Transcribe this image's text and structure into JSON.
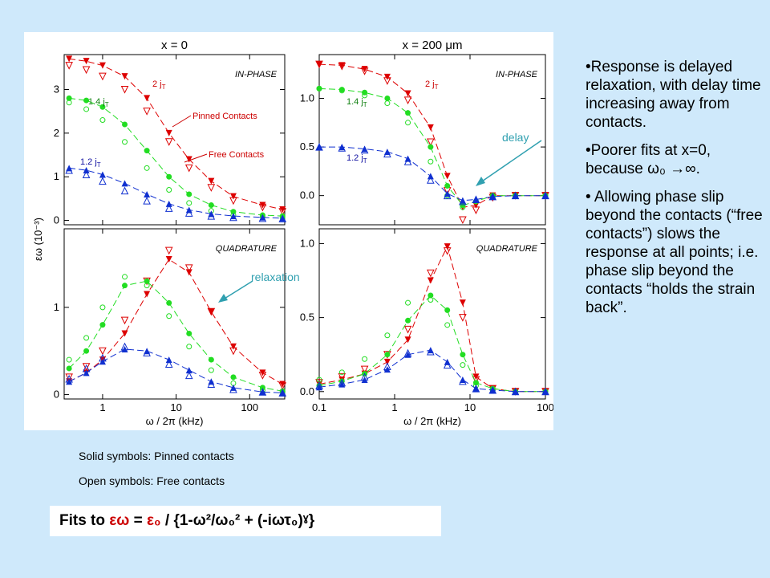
{
  "bullets": [
    "•Response is delayed relaxation, with delay time increasing away from contacts.",
    "•Poorer fits at x=0, because ω₀ →∞.",
    "• Allowing phase slip beyond the contacts (“free contacts”) slows the response at  all points; i.e. phase slip beyond the contacts “holds the strain back”."
  ],
  "notes": {
    "solid": "Solid symbols: Pinned contacts",
    "open": "Open symbols: Free contacts"
  },
  "fit": {
    "prefix": "Fits to ",
    "eps_w": "εω",
    "eq": " = ",
    "eps_0": "ε₀",
    "rest": " / {1-ω²/ω₀² + (-iωτ₀)ˠ}"
  },
  "annotations": {
    "delay": "delay",
    "relaxation": "relaxation",
    "pinned": "Pinned Contacts",
    "free": "Free Contacts",
    "in_phase": "IN-PHASE",
    "quadrature": "QUADRATURE",
    "j2": "2 j",
    "j14": "1.4 j",
    "j12": "1.2 j",
    "j_sub": "T"
  },
  "colors": {
    "red": "#dd0000",
    "green": "#22dd22",
    "blue": "#1030d0",
    "arrow": "#30a0b0"
  },
  "chart_data": [
    {
      "type": "scatter",
      "title": "x = 0",
      "panel": "IN-PHASE",
      "xscale": "log",
      "xlim": [
        0.3,
        300
      ],
      "ylim": [
        -0.1,
        3.8
      ],
      "xticks": [
        1,
        10,
        100
      ],
      "yticks": [
        0,
        1,
        2,
        3
      ],
      "ylabel": "εω   (10⁻³)",
      "series": [
        {
          "name": "2 jT",
          "color": "#dd0000",
          "x": [
            0.35,
            0.6,
            1,
            2,
            4,
            8,
            15,
            30,
            60,
            150,
            280
          ],
          "pinned": [
            3.7,
            3.65,
            3.55,
            3.3,
            2.8,
            2.0,
            1.4,
            0.9,
            0.55,
            0.35,
            0.25
          ],
          "free": [
            3.55,
            3.45,
            3.3,
            3.0,
            2.5,
            1.8,
            1.2,
            0.75,
            0.45,
            0.3,
            0.2
          ]
        },
        {
          "name": "1.4 jT",
          "color": "#22dd22",
          "x": [
            0.35,
            0.6,
            1,
            2,
            4,
            8,
            15,
            30,
            60,
            150,
            280
          ],
          "pinned": [
            2.8,
            2.75,
            2.6,
            2.2,
            1.6,
            1.0,
            0.6,
            0.35,
            0.2,
            0.12,
            0.1
          ],
          "free": [
            2.7,
            2.55,
            2.3,
            1.8,
            1.2,
            0.7,
            0.4,
            0.22,
            0.12,
            0.08,
            0.06
          ]
        },
        {
          "name": "1.2 jT",
          "color": "#1030d0",
          "x": [
            0.35,
            0.6,
            1,
            2,
            4,
            8,
            15,
            30,
            60,
            150,
            280
          ],
          "pinned": [
            1.2,
            1.15,
            1.05,
            0.85,
            0.6,
            0.38,
            0.24,
            0.15,
            0.1,
            0.07,
            0.05
          ],
          "free": [
            1.15,
            1.05,
            0.9,
            0.68,
            0.45,
            0.28,
            0.17,
            0.1,
            0.07,
            0.05,
            0.04
          ]
        }
      ]
    },
    {
      "type": "scatter",
      "title": "x = 200 μm",
      "panel": "IN-PHASE",
      "xscale": "log",
      "xlim": [
        0.1,
        100
      ],
      "ylim": [
        -0.3,
        1.45
      ],
      "xticks": [
        0.1,
        1,
        10,
        100
      ],
      "yticks": [
        0.0,
        0.5,
        1.0
      ],
      "series": [
        {
          "name": "2 jT",
          "color": "#dd0000",
          "x": [
            0.1,
            0.2,
            0.4,
            0.8,
            1.5,
            3,
            5,
            8,
            12,
            20,
            40,
            100
          ],
          "pinned": [
            1.35,
            1.34,
            1.3,
            1.22,
            1.05,
            0.7,
            0.2,
            -0.12,
            -0.1,
            0.0,
            0.0,
            0.0
          ],
          "free": [
            1.35,
            1.33,
            1.28,
            1.18,
            0.98,
            0.55,
            0.05,
            -0.25,
            -0.15,
            -0.02,
            0.0,
            0.0
          ]
        },
        {
          "name": "1.4 jT",
          "color": "#22dd22",
          "x": [
            0.1,
            0.2,
            0.4,
            0.8,
            1.5,
            3,
            5,
            8,
            12,
            20,
            40,
            100
          ],
          "pinned": [
            1.1,
            1.09,
            1.06,
            1.0,
            0.85,
            0.5,
            0.1,
            -0.1,
            -0.06,
            0.0,
            0.0,
            0.0
          ],
          "free": [
            1.1,
            1.08,
            1.03,
            0.95,
            0.75,
            0.35,
            0.0,
            -0.12,
            -0.06,
            -0.01,
            0.0,
            0.0
          ]
        },
        {
          "name": "1.2 jT",
          "color": "#1030d0",
          "x": [
            0.1,
            0.2,
            0.4,
            0.8,
            1.5,
            3,
            5,
            8,
            12,
            20,
            40,
            100
          ],
          "pinned": [
            0.5,
            0.5,
            0.48,
            0.45,
            0.38,
            0.2,
            0.02,
            -0.05,
            -0.04,
            -0.01,
            0.0,
            0.0
          ],
          "free": [
            0.5,
            0.49,
            0.47,
            0.43,
            0.35,
            0.16,
            0.0,
            -0.06,
            -0.04,
            -0.01,
            0.0,
            0.0
          ]
        }
      ]
    },
    {
      "type": "scatter",
      "panel": "QUADRATURE",
      "xscale": "log",
      "xlim": [
        0.3,
        300
      ],
      "ylim": [
        -0.05,
        1.9
      ],
      "xticks": [
        1,
        10,
        100
      ],
      "yticks": [
        0,
        1
      ],
      "xlabel": "ω / 2π   (kHz)",
      "series": [
        {
          "name": "2 jT",
          "color": "#dd0000",
          "x": [
            0.35,
            0.6,
            1,
            2,
            4,
            8,
            15,
            30,
            60,
            150,
            280
          ],
          "pinned": [
            0.15,
            0.25,
            0.4,
            0.7,
            1.15,
            1.55,
            1.4,
            0.95,
            0.55,
            0.25,
            0.12
          ],
          "free": [
            0.2,
            0.32,
            0.5,
            0.85,
            1.3,
            1.65,
            1.45,
            0.95,
            0.5,
            0.22,
            0.1
          ]
        },
        {
          "name": "1.4 jT",
          "color": "#22dd22",
          "x": [
            0.35,
            0.6,
            1,
            2,
            4,
            8,
            15,
            30,
            60,
            150,
            280
          ],
          "pinned": [
            0.3,
            0.5,
            0.8,
            1.25,
            1.3,
            1.05,
            0.7,
            0.4,
            0.2,
            0.08,
            0.04
          ],
          "free": [
            0.4,
            0.65,
            1.0,
            1.35,
            1.25,
            0.9,
            0.55,
            0.28,
            0.13,
            0.05,
            0.03
          ]
        },
        {
          "name": "1.2 jT",
          "color": "#1030d0",
          "x": [
            0.35,
            0.6,
            1,
            2,
            4,
            8,
            15,
            30,
            60,
            150,
            280
          ],
          "pinned": [
            0.15,
            0.25,
            0.38,
            0.52,
            0.5,
            0.4,
            0.28,
            0.15,
            0.08,
            0.03,
            0.02
          ],
          "free": [
            0.18,
            0.3,
            0.42,
            0.55,
            0.48,
            0.35,
            0.22,
            0.12,
            0.06,
            0.03,
            0.02
          ]
        }
      ]
    },
    {
      "type": "scatter",
      "panel": "QUADRATURE",
      "xscale": "log",
      "xlim": [
        0.1,
        100
      ],
      "ylim": [
        -0.05,
        1.1
      ],
      "xticks": [
        0.1,
        1,
        10,
        100
      ],
      "yticks": [
        0.0,
        0.5,
        1.0
      ],
      "xlabel": "ω / 2π   (kHz)",
      "series": [
        {
          "name": "2 jT",
          "color": "#dd0000",
          "x": [
            0.1,
            0.2,
            0.4,
            0.8,
            1.5,
            3,
            5,
            8,
            12,
            20,
            40,
            100
          ],
          "pinned": [
            0.05,
            0.08,
            0.12,
            0.2,
            0.35,
            0.75,
            0.98,
            0.6,
            0.1,
            0.02,
            0.0,
            0.0
          ],
          "free": [
            0.06,
            0.1,
            0.15,
            0.25,
            0.42,
            0.8,
            0.95,
            0.5,
            0.08,
            0.02,
            0.0,
            0.0
          ]
        },
        {
          "name": "1.4 jT",
          "color": "#22dd22",
          "x": [
            0.1,
            0.2,
            0.4,
            0.8,
            1.5,
            3,
            5,
            8,
            12,
            20,
            40,
            100
          ],
          "pinned": [
            0.04,
            0.07,
            0.12,
            0.25,
            0.48,
            0.65,
            0.55,
            0.25,
            0.06,
            0.02,
            0.0,
            0.0
          ],
          "free": [
            0.08,
            0.13,
            0.22,
            0.38,
            0.6,
            0.62,
            0.45,
            0.18,
            0.04,
            0.01,
            0.0,
            0.0
          ]
        },
        {
          "name": "1.2 jT",
          "color": "#1030d0",
          "x": [
            0.1,
            0.2,
            0.4,
            0.8,
            1.5,
            3,
            5,
            8,
            12,
            20,
            40,
            100
          ],
          "pinned": [
            0.03,
            0.05,
            0.08,
            0.15,
            0.25,
            0.28,
            0.2,
            0.08,
            0.02,
            0.01,
            0.0,
            0.0
          ],
          "free": [
            0.04,
            0.06,
            0.1,
            0.17,
            0.26,
            0.27,
            0.18,
            0.07,
            0.02,
            0.01,
            0.0,
            0.0
          ]
        }
      ]
    }
  ]
}
